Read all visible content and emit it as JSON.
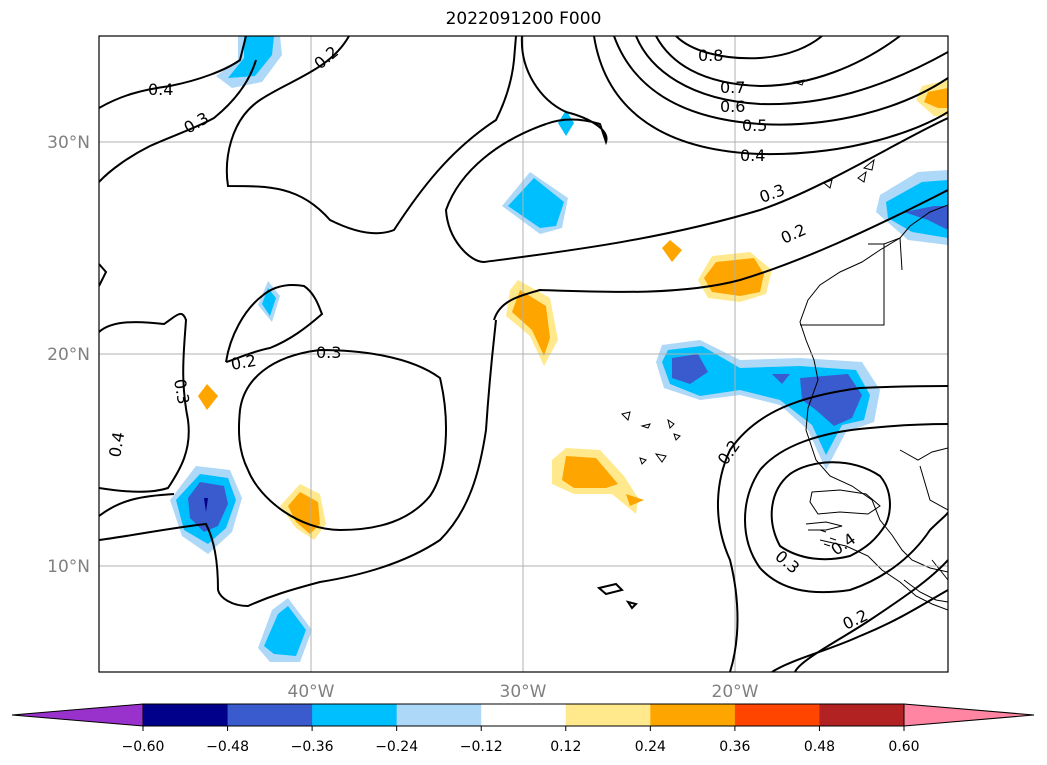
{
  "title": "2022091200 F000",
  "lat_labels": [
    "30°N",
    "20°N",
    "10°N"
  ],
  "lon_labels": [
    "40°W",
    "30°W",
    "20°W"
  ],
  "contour_labels": [
    "0.8",
    "0.7",
    "0.6",
    "0.5",
    "0.4",
    "0.3",
    "0.2",
    "0.4",
    "0.3",
    "0.2",
    "0.3",
    "0.2",
    "0.3",
    "0.4",
    "0.2",
    "0.3",
    "0.4",
    "0.2"
  ],
  "colorbar": {
    "ticks": [
      "−0.60",
      "−0.48",
      "−0.36",
      "−0.24",
      "−0.12",
      "0.12",
      "0.24",
      "0.36",
      "0.48",
      "0.60"
    ],
    "colors": [
      "#9932cc",
      "#00008b",
      "#3a5bcd",
      "#00bfff",
      "#add8f7",
      "#ffffff",
      "#ffe98c",
      "#ffa500",
      "#ff4500",
      "#b22222",
      "#ff85a2"
    ]
  },
  "shading_colors": {
    "dark_blue": "#3a5bcd",
    "mid_blue": "#00bfff",
    "light_blue": "#add8f7",
    "light_yellow": "#ffe98c",
    "orange": "#ffa500"
  }
}
